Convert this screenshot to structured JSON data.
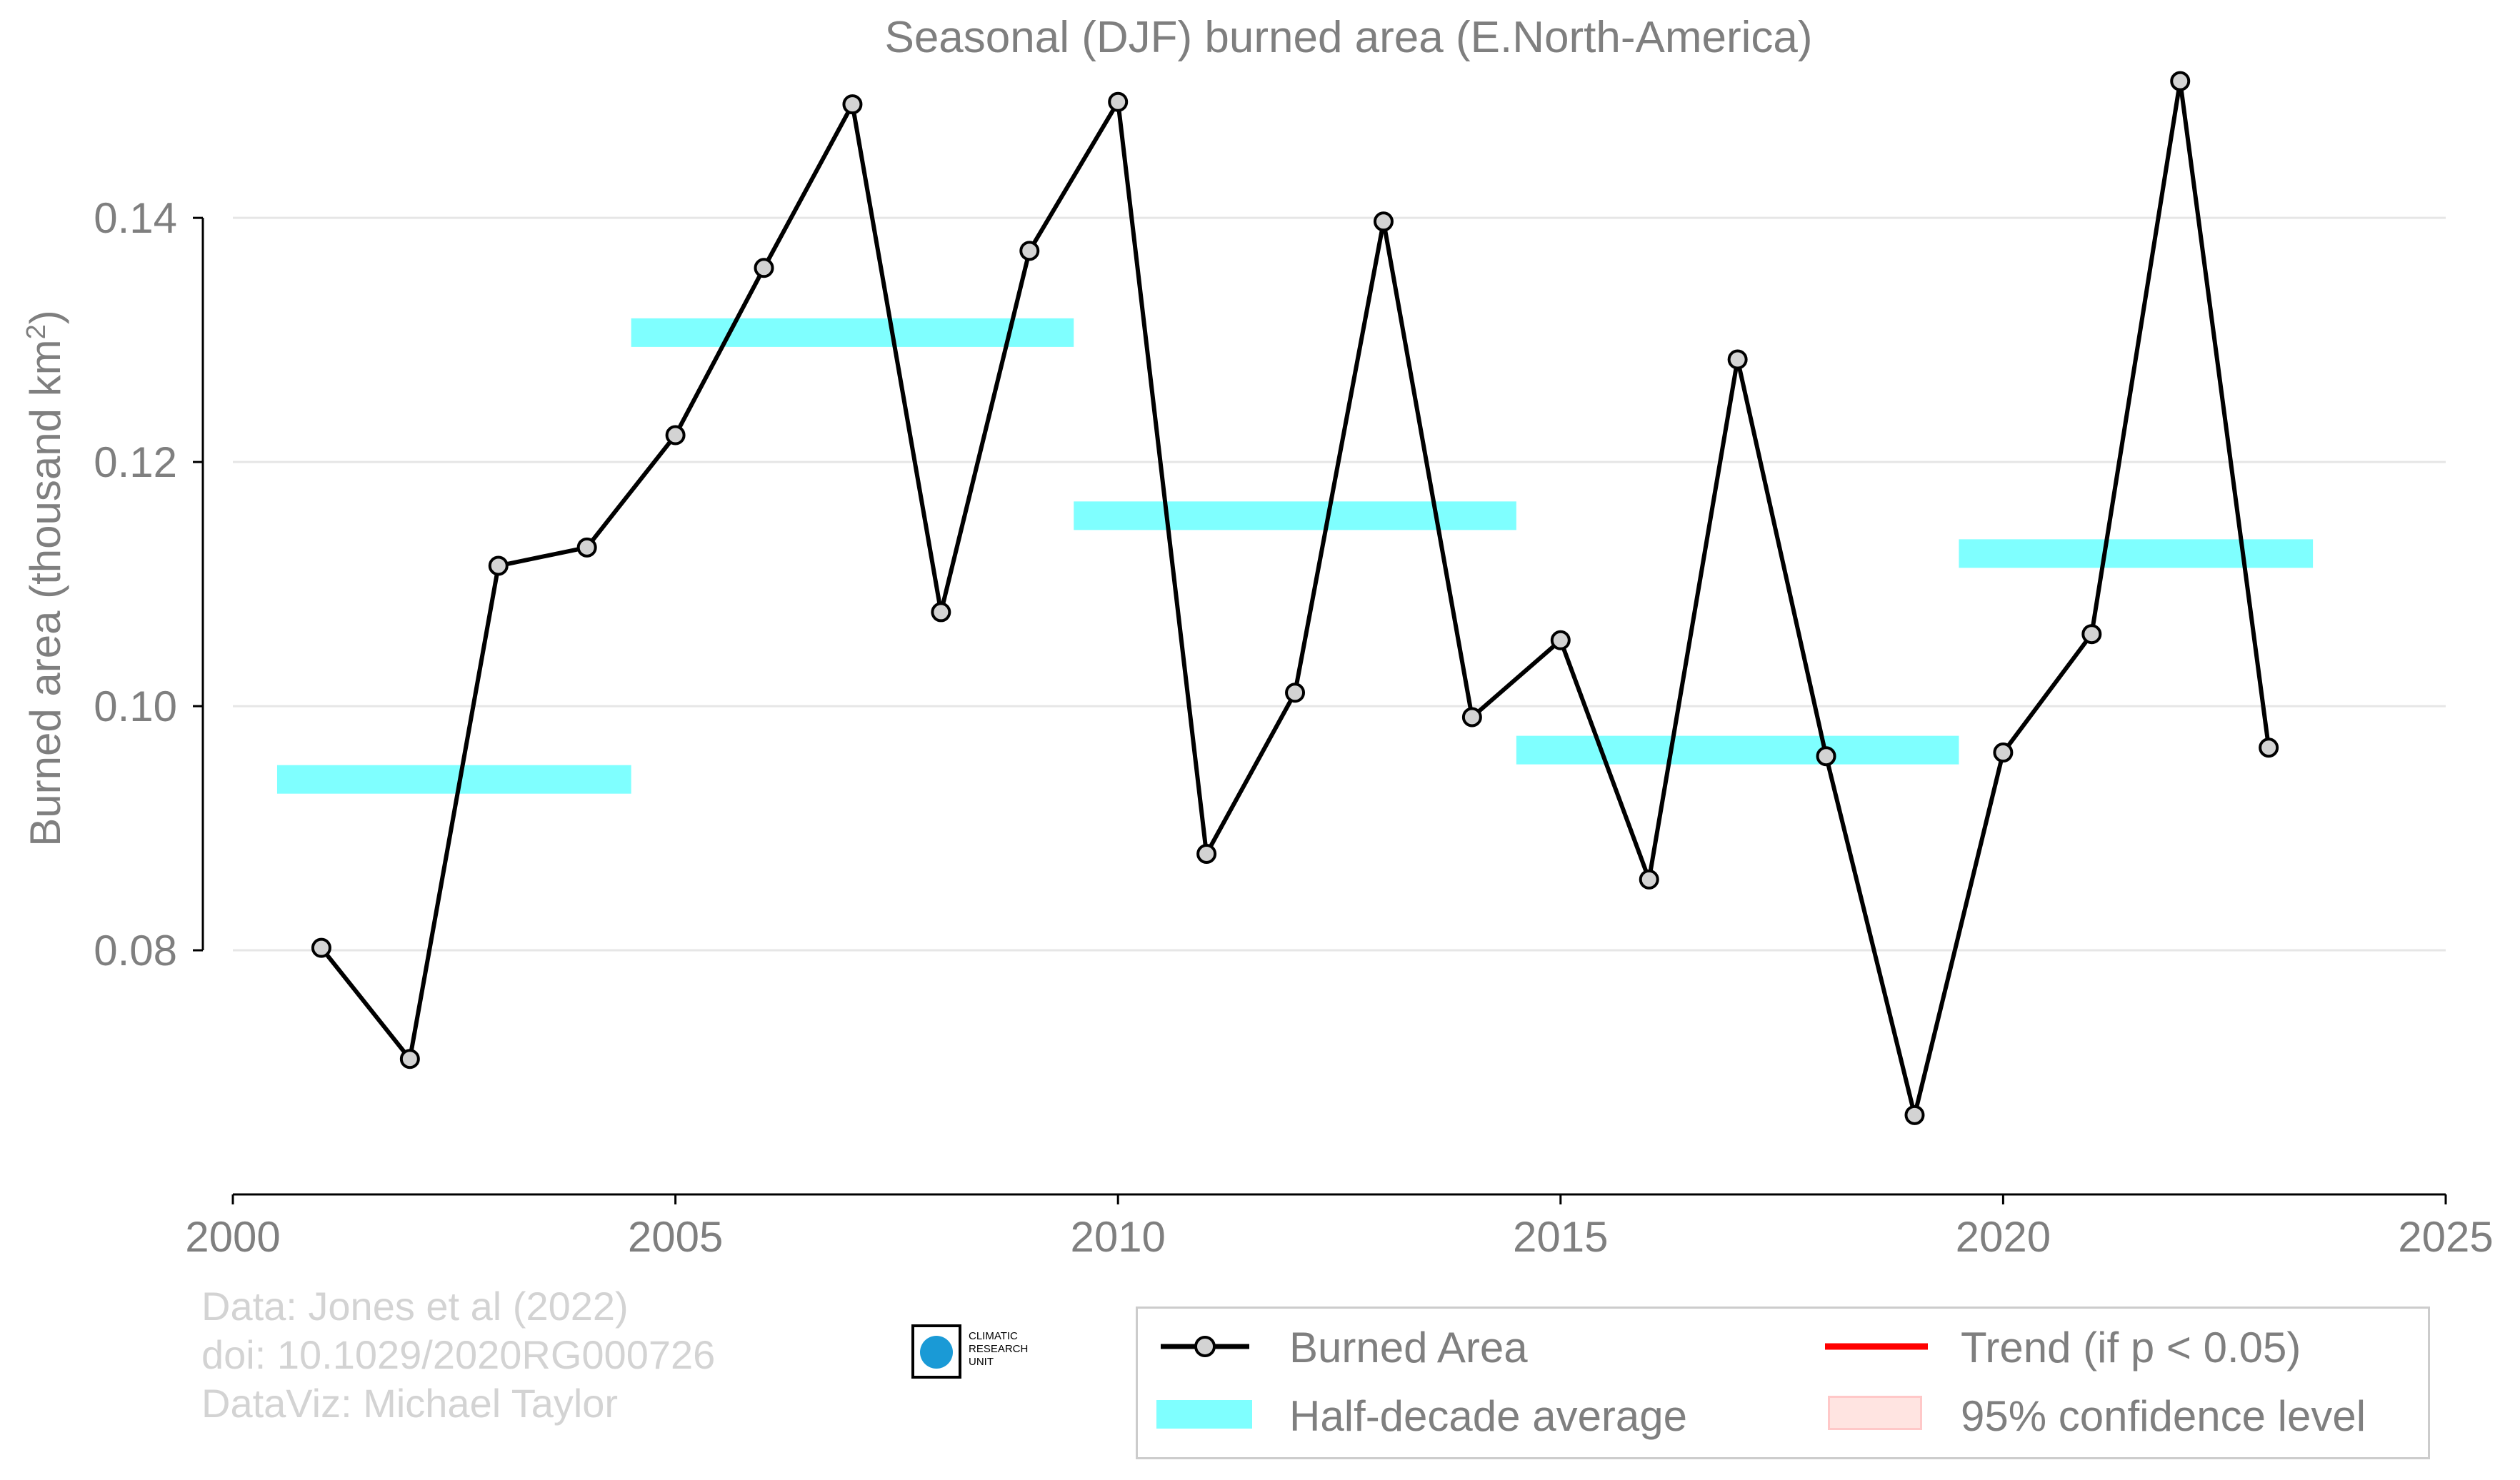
{
  "chart_data": {
    "type": "line",
    "title": "Seasonal (DJF) burned area (E.North-America)",
    "ylabel": "Burned area (thousand km",
    "ylabel_sup": "2",
    "ylabel_end": ")",
    "xlim": [
      2000,
      2025
    ],
    "ylim": [
      0.06,
      0.152
    ],
    "x_ticks": [
      2000,
      2005,
      2010,
      2015,
      2020,
      2025
    ],
    "y_ticks": [
      0.08,
      0.1,
      0.12,
      0.14
    ],
    "y_tick_labels": [
      "0.08",
      "0.10",
      "0.12",
      "0.14"
    ],
    "grid": "horizontal",
    "series": [
      {
        "name": "Burned Area",
        "color": "#000000",
        "marker_fill": "#d3d3d3",
        "x": [
          2001,
          2002,
          2003,
          2004,
          2005,
          2006,
          2007,
          2008,
          2009,
          2010,
          2011,
          2012,
          2013,
          2014,
          2015,
          2016,
          2017,
          2018,
          2019,
          2020,
          2021,
          2022,
          2023
        ],
        "y": [
          0.0802,
          0.0711,
          0.1115,
          0.113,
          0.1222,
          0.1359,
          0.1493,
          0.1077,
          0.1373,
          0.1495,
          0.0879,
          0.1011,
          0.1397,
          0.0991,
          0.1054,
          0.0858,
          0.1284,
          0.0959,
          0.0665,
          0.0962,
          0.1059,
          0.1512,
          0.0966
        ]
      }
    ],
    "half_decade_averages": {
      "name": "Half-decade average",
      "color": "#7fffff",
      "segments": [
        {
          "x0": 2000.5,
          "x1": 2004.5,
          "y": 0.094
        },
        {
          "x0": 2004.5,
          "x1": 2009.5,
          "y": 0.1306
        },
        {
          "x0": 2009.5,
          "x1": 2014.5,
          "y": 0.1156
        },
        {
          "x0": 2014.5,
          "x1": 2019.5,
          "y": 0.0964
        },
        {
          "x0": 2019.5,
          "x1": 2023.5,
          "y": 0.1125
        }
      ]
    },
    "legend": {
      "placement": "bottom-right",
      "items": [
        {
          "label": "Burned Area",
          "color": "#000000"
        },
        {
          "label": "Trend (if p < 0.05)",
          "color": "#ff0000"
        },
        {
          "label": "Half-decade average",
          "color": "#7fffff"
        },
        {
          "label": "95% confidence level",
          "color": "#ffe4e1"
        }
      ]
    }
  },
  "credits": {
    "line1": "Data: Jones et al (2022)",
    "line2": "doi: 10.1029/2020RG000726",
    "line3": "DataViz: Michael Taylor"
  },
  "logo": {
    "line1": "CLIMATIC",
    "line2": "RESEARCH",
    "line3": "UNIT"
  }
}
